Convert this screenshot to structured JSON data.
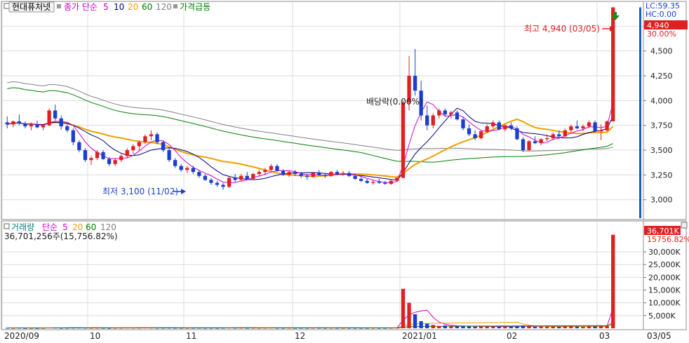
{
  "price_panel": {
    "stock_name": "현대퓨처넷",
    "legend": [
      {
        "label": "종가 단순",
        "color": "#cc00cc"
      },
      {
        "label": "5",
        "color": "#cc00cc"
      },
      {
        "label": "10",
        "color": "#000080"
      },
      {
        "label": "20",
        "color": "#f0a000"
      },
      {
        "label": "60",
        "color": "#008000"
      },
      {
        "label": "120",
        "color": "#808080"
      },
      {
        "label": "가격급등",
        "color": "#008000"
      }
    ],
    "lc_label": "LC:59.35",
    "hc_label": "HC:0.00",
    "last_price_tag": "4,940",
    "last_pct_tag": "30.00%",
    "high_annotation": "최고 4,940 (03/05)",
    "low_annotation": "최저 3,100 (11/02)",
    "event_annotation": "배당락(0.00%)",
    "y_ticks": [
      "4,750",
      "4,500",
      "4,250",
      "4,000",
      "3,750",
      "3,500",
      "3,250",
      "3,000"
    ]
  },
  "volume_panel": {
    "legend": [
      {
        "label": "거래량",
        "color": "#008080"
      },
      {
        "label": "단순",
        "color": "#cc00cc"
      },
      {
        "label": "5",
        "color": "#cc00cc"
      },
      {
        "label": "20",
        "color": "#f0a000"
      },
      {
        "label": "60",
        "color": "#008000"
      },
      {
        "label": "120",
        "color": "#808080"
      }
    ],
    "volume_text": "36,701,256주(15,756.82%)",
    "last_vol_tag": "36,701K",
    "last_vol_pct": "15756.82%",
    "y_ticks": [
      "30,000K",
      "25,000K",
      "20,000K",
      "15,000K",
      "10,000K",
      "5,000K"
    ]
  },
  "x_axis": {
    "labels": [
      "2020/09",
      "10",
      "11",
      "12",
      "2021/01",
      "02",
      "03"
    ],
    "right_date": "03/05"
  },
  "colors": {
    "up": "#e02020",
    "down": "#1a3fd0",
    "ma5": "#cc00cc",
    "ma10": "#000080",
    "ma20": "#f0a000",
    "ma60": "#008000",
    "ma120": "#808080",
    "grid": "#dcdcdc"
  },
  "chart_data": [
    {
      "type": "candlestick",
      "title": "현대퓨처넷",
      "y_range": [
        2800,
        5000
      ],
      "y_ticks": [
        3000,
        3250,
        3500,
        3750,
        4000,
        4250,
        4500,
        4750
      ],
      "candles": [
        [
          3780,
          3840,
          3720,
          3760
        ],
        [
          3760,
          3800,
          3730,
          3790
        ],
        [
          3790,
          3860,
          3750,
          3770
        ],
        [
          3770,
          3790,
          3720,
          3740
        ],
        [
          3740,
          3780,
          3700,
          3760
        ],
        [
          3760,
          3800,
          3720,
          3730
        ],
        [
          3730,
          3760,
          3700,
          3750
        ],
        [
          3750,
          3920,
          3740,
          3900
        ],
        [
          3900,
          3960,
          3800,
          3820
        ],
        [
          3820,
          3850,
          3710,
          3740
        ],
        [
          3740,
          3760,
          3680,
          3700
        ],
        [
          3700,
          3720,
          3550,
          3580
        ],
        [
          3580,
          3600,
          3480,
          3500
        ],
        [
          3500,
          3520,
          3380,
          3400
        ],
        [
          3400,
          3440,
          3350,
          3420
        ],
        [
          3420,
          3500,
          3400,
          3480
        ],
        [
          3480,
          3500,
          3400,
          3410
        ],
        [
          3410,
          3430,
          3340,
          3360
        ],
        [
          3360,
          3420,
          3340,
          3400
        ],
        [
          3400,
          3460,
          3380,
          3440
        ],
        [
          3440,
          3520,
          3420,
          3500
        ],
        [
          3500,
          3560,
          3460,
          3540
        ],
        [
          3540,
          3600,
          3500,
          3580
        ],
        [
          3580,
          3660,
          3560,
          3640
        ],
        [
          3640,
          3700,
          3600,
          3660
        ],
        [
          3660,
          3680,
          3560,
          3580
        ],
        [
          3580,
          3600,
          3480,
          3500
        ],
        [
          3500,
          3520,
          3380,
          3400
        ],
        [
          3400,
          3420,
          3320,
          3340
        ],
        [
          3340,
          3360,
          3280,
          3300
        ],
        [
          3300,
          3340,
          3270,
          3320
        ],
        [
          3320,
          3340,
          3260,
          3280
        ],
        [
          3280,
          3300,
          3220,
          3240
        ],
        [
          3240,
          3260,
          3190,
          3200
        ],
        [
          3200,
          3220,
          3150,
          3170
        ],
        [
          3170,
          3190,
          3130,
          3150
        ],
        [
          3150,
          3170,
          3100,
          3130
        ],
        [
          3130,
          3230,
          3120,
          3220
        ],
        [
          3220,
          3260,
          3180,
          3200
        ],
        [
          3200,
          3260,
          3190,
          3240
        ],
        [
          3240,
          3280,
          3200,
          3210
        ],
        [
          3210,
          3270,
          3200,
          3260
        ],
        [
          3260,
          3300,
          3240,
          3280
        ],
        [
          3280,
          3320,
          3250,
          3300
        ],
        [
          3300,
          3360,
          3290,
          3340
        ],
        [
          3340,
          3360,
          3280,
          3290
        ],
        [
          3290,
          3310,
          3240,
          3250
        ],
        [
          3250,
          3290,
          3230,
          3280
        ],
        [
          3280,
          3300,
          3240,
          3260
        ],
        [
          3260,
          3280,
          3220,
          3240
        ],
        [
          3240,
          3260,
          3200,
          3230
        ],
        [
          3230,
          3280,
          3220,
          3270
        ],
        [
          3270,
          3300,
          3240,
          3250
        ],
        [
          3250,
          3270,
          3220,
          3240
        ],
        [
          3240,
          3290,
          3230,
          3280
        ],
        [
          3280,
          3300,
          3250,
          3260
        ],
        [
          3260,
          3290,
          3240,
          3270
        ],
        [
          3270,
          3290,
          3230,
          3240
        ],
        [
          3240,
          3260,
          3200,
          3210
        ],
        [
          3210,
          3230,
          3180,
          3190
        ],
        [
          3190,
          3210,
          3160,
          3170
        ],
        [
          3170,
          3200,
          3150,
          3180
        ],
        [
          3180,
          3210,
          3160,
          3170
        ],
        [
          3170,
          3190,
          3150,
          3160
        ],
        [
          3160,
          3200,
          3150,
          3190
        ],
        [
          3190,
          3230,
          3180,
          3220
        ],
        [
          3220,
          4000,
          3220,
          3980
        ],
        [
          3980,
          4450,
          3900,
          4250
        ],
        [
          4250,
          4520,
          4050,
          4100
        ],
        [
          4100,
          4200,
          3800,
          3850
        ],
        [
          3850,
          3950,
          3700,
          3750
        ],
        [
          3750,
          3870,
          3720,
          3850
        ],
        [
          3850,
          3920,
          3820,
          3900
        ],
        [
          3900,
          3920,
          3840,
          3860
        ],
        [
          3860,
          3900,
          3820,
          3880
        ],
        [
          3880,
          3900,
          3800,
          3810
        ],
        [
          3810,
          3830,
          3700,
          3720
        ],
        [
          3720,
          3760,
          3640,
          3660
        ],
        [
          3660,
          3700,
          3600,
          3620
        ],
        [
          3620,
          3700,
          3610,
          3690
        ],
        [
          3690,
          3760,
          3670,
          3740
        ],
        [
          3740,
          3800,
          3720,
          3780
        ],
        [
          3780,
          3800,
          3700,
          3710
        ],
        [
          3710,
          3760,
          3690,
          3750
        ],
        [
          3750,
          3780,
          3700,
          3720
        ],
        [
          3720,
          3740,
          3600,
          3610
        ],
        [
          3610,
          3630,
          3480,
          3500
        ],
        [
          3500,
          3600,
          3490,
          3590
        ],
        [
          3590,
          3640,
          3560,
          3570
        ],
        [
          3570,
          3620,
          3550,
          3610
        ],
        [
          3610,
          3660,
          3590,
          3620
        ],
        [
          3620,
          3680,
          3600,
          3660
        ],
        [
          3660,
          3700,
          3630,
          3640
        ],
        [
          3640,
          3720,
          3620,
          3700
        ],
        [
          3700,
          3760,
          3680,
          3740
        ],
        [
          3740,
          3800,
          3710,
          3720
        ],
        [
          3720,
          3760,
          3690,
          3740
        ],
        [
          3740,
          3800,
          3720,
          3780
        ],
        [
          3780,
          3800,
          3680,
          3690
        ],
        [
          3690,
          3760,
          3600,
          3700
        ],
        [
          3700,
          3800,
          3690,
          3790
        ],
        [
          3790,
          4940,
          3790,
          4940
        ]
      ],
      "ma_periods": [
        5,
        10,
        20,
        60,
        120
      ]
    },
    {
      "type": "bar",
      "title": "거래량",
      "unit": "K",
      "y_range": [
        0,
        38000
      ],
      "y_ticks": [
        5000,
        10000,
        15000,
        20000,
        25000,
        30000
      ],
      "values": [
        150,
        120,
        180,
        90,
        110,
        100,
        130,
        260,
        220,
        140,
        160,
        200,
        210,
        180,
        150,
        170,
        140,
        120,
        160,
        180,
        220,
        200,
        190,
        240,
        210,
        170,
        180,
        190,
        160,
        150,
        140,
        160,
        170,
        150,
        160,
        140,
        170,
        220,
        180,
        190,
        150,
        170,
        160,
        180,
        220,
        160,
        150,
        170,
        140,
        160,
        150,
        180,
        160,
        150,
        170,
        150,
        140,
        160,
        150,
        140,
        130,
        150,
        140,
        130,
        160,
        200,
        15500,
        10000,
        5500,
        2800,
        1800,
        1300,
        900,
        1100,
        800,
        700,
        900,
        700,
        600,
        800,
        700,
        650,
        600,
        700,
        650,
        900,
        1100,
        800,
        600,
        700,
        650,
        700,
        600,
        800,
        900,
        700,
        600,
        800,
        750,
        900,
        950,
        36701
      ]
    }
  ]
}
